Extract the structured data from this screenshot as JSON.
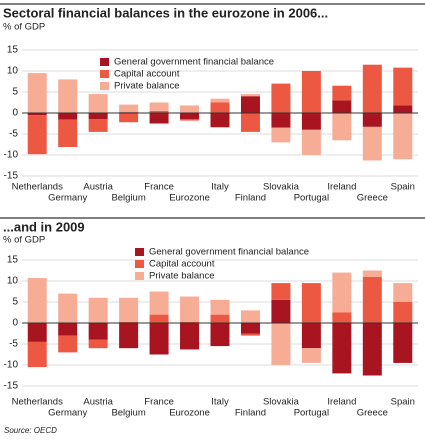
{
  "chart_data": [
    {
      "type": "bar",
      "stacked": true,
      "title": "Sectoral financial balances in the eurozone in 2006...",
      "y_label": "% of GDP",
      "categories": [
        "Netherlands",
        "Germany",
        "Austria",
        "Belgium",
        "France",
        "Eurozone",
        "Italy",
        "Finland",
        "Slovakia",
        "Portugal",
        "Ireland",
        "Greece",
        "Spain"
      ],
      "series": [
        {
          "name": "General government financial balance",
          "color": "#a8141f",
          "values": [
            -0.5,
            -1.6,
            -1.5,
            0.2,
            -2.5,
            -1.5,
            -3.4,
            4,
            -3.5,
            -4,
            3,
            -3.3,
            1.8
          ]
        },
        {
          "name": "Capital account",
          "color": "#ec5842",
          "values": [
            -9.3,
            -6.5,
            -3,
            -2.2,
            0.5,
            -0.3,
            2.5,
            -4.5,
            7,
            10,
            3.5,
            11.5,
            9
          ]
        },
        {
          "name": "Private balance",
          "color": "#f7ac96",
          "values": [
            9.5,
            8,
            4.5,
            1.8,
            2,
            1.8,
            0.9,
            0.5,
            -3.5,
            -6,
            -6.5,
            -8,
            -11
          ]
        }
      ],
      "ylim": [
        -15,
        15
      ],
      "yticks": [
        15,
        10,
        5,
        0,
        -5,
        -10,
        -15
      ],
      "grid": true
    },
    {
      "type": "bar",
      "stacked": true,
      "title": "...and in 2009",
      "y_label": "% of GDP",
      "categories": [
        "Netherlands",
        "Germany",
        "Austria",
        "Belgium",
        "France",
        "Eurozone",
        "Italy",
        "Finland",
        "Slovakia",
        "Portugal",
        "Ireland",
        "Greece",
        "Spain"
      ],
      "series": [
        {
          "name": "General government financial balance",
          "color": "#a8141f",
          "values": [
            -4.5,
            -3,
            -4,
            -6,
            -7.5,
            -6.3,
            -5.5,
            -2.5,
            5.5,
            -6,
            -12,
            -12.5,
            -9.5
          ]
        },
        {
          "name": "Capital account",
          "color": "#ec5842",
          "values": [
            -6,
            -4,
            -2,
            0.3,
            2,
            0.3,
            2,
            -0.5,
            4,
            9.5,
            2.5,
            11,
            5
          ]
        },
        {
          "name": "Private balance",
          "color": "#f7ac96",
          "values": [
            10.7,
            7,
            6,
            5.7,
            5.5,
            6,
            3.5,
            3,
            -10,
            -3.5,
            9.5,
            1.5,
            4.5
          ]
        }
      ],
      "ylim": [
        -15,
        15
      ],
      "yticks": [
        15,
        10,
        5,
        0,
        -5,
        -10,
        -15
      ],
      "grid": true
    }
  ],
  "source": "Source: OECD"
}
